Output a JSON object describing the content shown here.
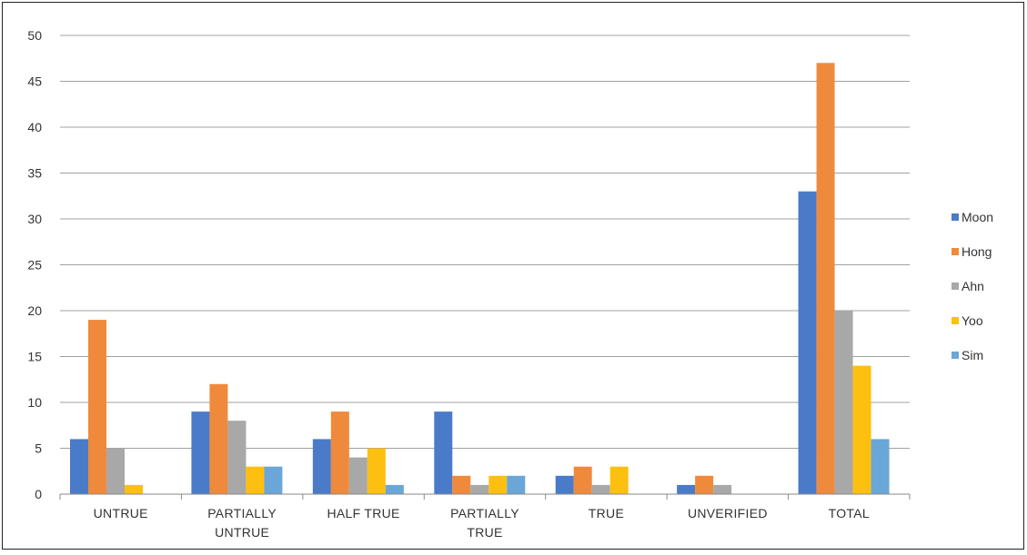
{
  "chart_data": {
    "type": "bar",
    "categories": [
      [
        "UNTRUE"
      ],
      [
        "PARTIALLY",
        "UNTRUE"
      ],
      [
        "HALF TRUE"
      ],
      [
        "PARTIALLY",
        "TRUE"
      ],
      [
        "TRUE"
      ],
      [
        "UNVERIFIED"
      ],
      [
        "TOTAL"
      ]
    ],
    "series": [
      {
        "name": "Moon",
        "color": "#4a7bc8",
        "values": [
          6,
          9,
          6,
          9,
          2,
          1,
          33
        ]
      },
      {
        "name": "Hong",
        "color": "#ef8a3c",
        "values": [
          19,
          12,
          9,
          2,
          3,
          2,
          47
        ]
      },
      {
        "name": "Ahn",
        "color": "#a8a8a8",
        "values": [
          5,
          8,
          4,
          1,
          1,
          1,
          20
        ]
      },
      {
        "name": "Yoo",
        "color": "#fdc010",
        "values": [
          1,
          3,
          5,
          2,
          3,
          0,
          14
        ]
      },
      {
        "name": "Sim",
        "color": "#6aa6d8",
        "values": [
          0,
          3,
          1,
          2,
          0,
          0,
          6
        ]
      }
    ],
    "yticks": [
      "0",
      "5",
      "10",
      "15",
      "20",
      "25",
      "30",
      "35",
      "40",
      "45",
      "50"
    ],
    "ylim": [
      0,
      50
    ],
    "grid": true,
    "legend": "right",
    "title": "",
    "xlabel": "",
    "ylabel": ""
  }
}
